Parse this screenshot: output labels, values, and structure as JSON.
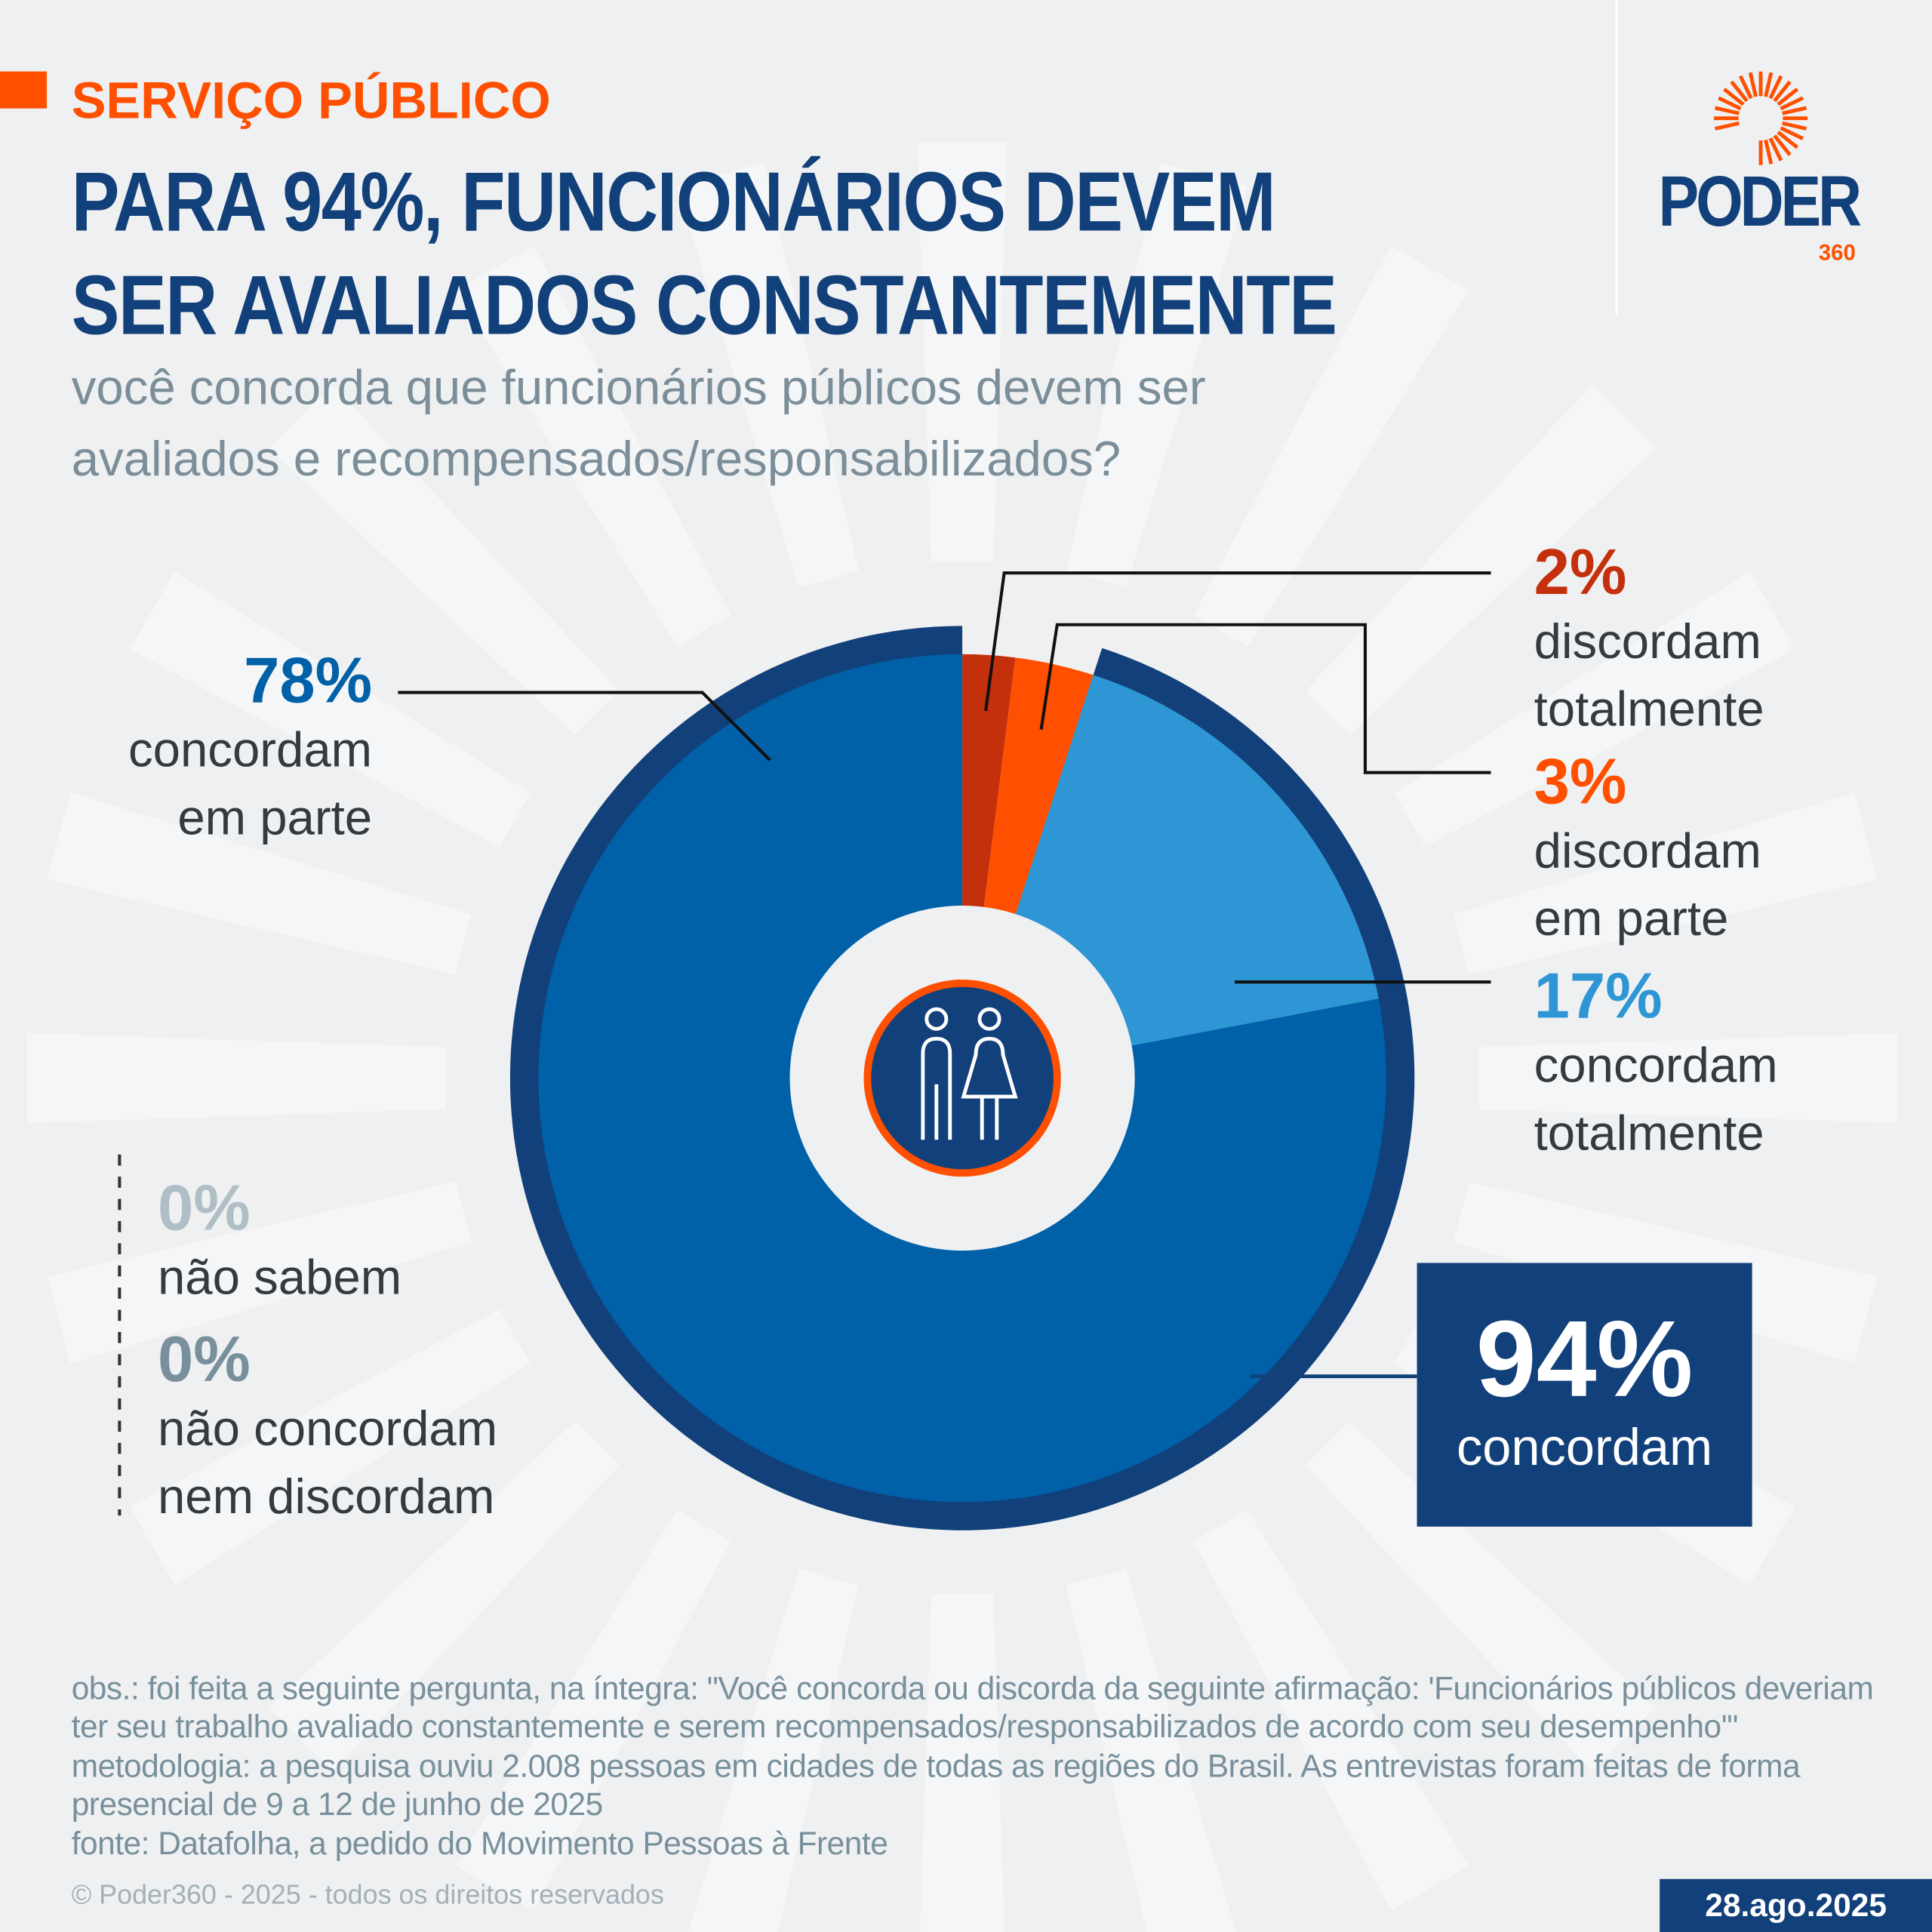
{
  "header": {
    "kicker": "SERVIÇO PÚBLICO",
    "title_line1": "PARA 94%, FUNCIONÁRIOS DEVEM",
    "title_line2": "SER AVALIADOS CONSTANTEMENTE",
    "subtitle_line1": "você concorda que funcionários públicos devem ser",
    "subtitle_line2": "avaliados e recompensados/responsabilizados?"
  },
  "logo": {
    "name": "PODER",
    "suffix": "360"
  },
  "colors": {
    "dark_blue": "#12407a",
    "mid_blue": "#0060a8",
    "light_blue": "#2e96d4",
    "orange": "#fe5000",
    "dark_red": "#c4300c",
    "grey_light": "#b0bec5",
    "grey_dark": "#78909c"
  },
  "chart_data": {
    "type": "pie",
    "variant": "donut",
    "categories": [
      "discordam totalmente",
      "discordam em parte",
      "concordam totalmente",
      "concordam em parte",
      "não sabem",
      "não concordam nem discordam"
    ],
    "values": [
      2,
      3,
      17,
      78,
      0,
      0
    ],
    "slice_colors": [
      "#c4300c",
      "#fe5000",
      "#2e96d4",
      "#0060a8",
      "#b0bec5",
      "#78909c"
    ],
    "labels": [
      {
        "pct": "2%",
        "line1": "discordam",
        "line2": "totalmente"
      },
      {
        "pct": "3%",
        "line1": "discordam",
        "line2": "em parte"
      },
      {
        "pct": "17%",
        "line1": "concordam",
        "line2": "totalmente"
      },
      {
        "pct": "78%",
        "line1": "concordam",
        "line2": "em parte"
      },
      {
        "pct": "0%",
        "line1": "não sabem"
      },
      {
        "pct": "0%",
        "line1": "não concordam",
        "line2": "nem discordam"
      }
    ],
    "total_agree": {
      "pct": "94%",
      "label": "concordam",
      "value": 94
    },
    "center_icon": "people-icon"
  },
  "footer": {
    "notes": [
      "obs.: foi feita a seguinte pergunta, na íntegra: \"Você concorda ou discorda da seguinte afirmação: 'Funcionários públicos deveriam ter seu trabalho avaliado constantemente e serem recompensados/responsabilizados de acordo com seu desempenho'\"",
      "metodologia: a pesquisa ouviu 2.008 pessoas em cidades de todas as regiões do Brasil. As entrevistas foram feitas de forma presencial de 9 a 12 de junho de 2025",
      "fonte: Datafolha, a pedido do Movimento Pessoas à Frente"
    ],
    "copyright": "© Poder360 - 2025 - todos os direitos reservados",
    "date": "28.ago.2025"
  }
}
